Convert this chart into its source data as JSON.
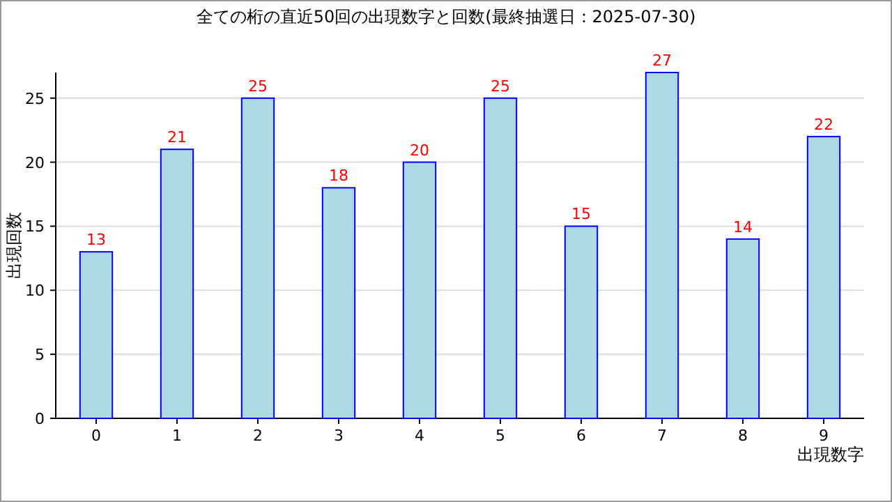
{
  "chart_data": {
    "type": "bar",
    "title": "全ての桁の直近50回の出現数字と回数(最終抽選日：2025-07-30)",
    "xlabel": "出現数字",
    "ylabel": "出現回数",
    "categories": [
      "0",
      "1",
      "2",
      "3",
      "4",
      "5",
      "6",
      "7",
      "8",
      "9"
    ],
    "values": [
      13,
      21,
      25,
      18,
      20,
      25,
      15,
      27,
      14,
      22
    ],
    "color": "#add8e6",
    "ylim": [
      0,
      27
    ],
    "yticks": [
      0,
      5,
      10,
      15,
      20,
      25
    ],
    "grid": "y",
    "data_labels": true
  }
}
